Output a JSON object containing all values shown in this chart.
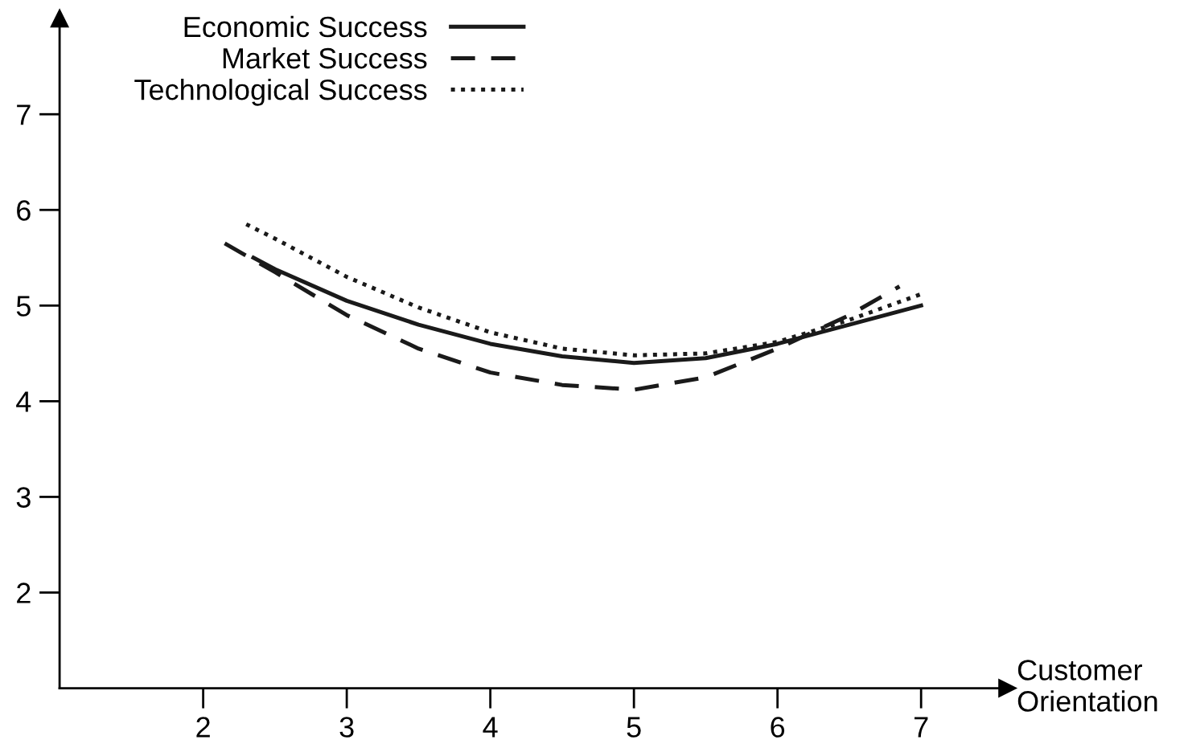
{
  "chart_data": {
    "type": "line",
    "xlabel": "Customer\nOrientation",
    "xlim": [
      1,
      7.6
    ],
    "ylim": [
      1,
      8
    ],
    "xticks": [
      2,
      3,
      4,
      5,
      6,
      7
    ],
    "yticks": [
      2,
      3,
      4,
      5,
      6,
      7
    ],
    "grid": false,
    "legend": "top left",
    "marker": "none",
    "series": [
      {
        "name": "Economic Success",
        "color": "#1a1a1a",
        "line_style": "solid",
        "x": [
          2.35,
          2.5,
          3,
          3.5,
          4,
          4.5,
          5,
          5.5,
          6,
          6.5,
          7
        ],
        "values": [
          5.5,
          5.38,
          5.05,
          4.8,
          4.6,
          4.47,
          4.4,
          4.45,
          4.6,
          4.8,
          5.0
        ]
      },
      {
        "name": "Market Success",
        "color": "#1a1a1a",
        "line_style": "dashed",
        "x": [
          2.15,
          2.5,
          3,
          3.5,
          4,
          4.5,
          5,
          5.5,
          6,
          6.5,
          6.85
        ],
        "values": [
          5.65,
          5.35,
          4.9,
          4.55,
          4.3,
          4.17,
          4.12,
          4.25,
          4.55,
          4.9,
          5.2
        ]
      },
      {
        "name": "Technological Success",
        "color": "#1a1a1a",
        "line_style": "dotted",
        "x": [
          2.3,
          2.5,
          3,
          3.5,
          4,
          4.5,
          5,
          5.5,
          6,
          6.5,
          7
        ],
        "values": [
          5.85,
          5.7,
          5.3,
          4.98,
          4.72,
          4.55,
          4.48,
          4.5,
          4.62,
          4.85,
          5.12
        ]
      }
    ]
  }
}
